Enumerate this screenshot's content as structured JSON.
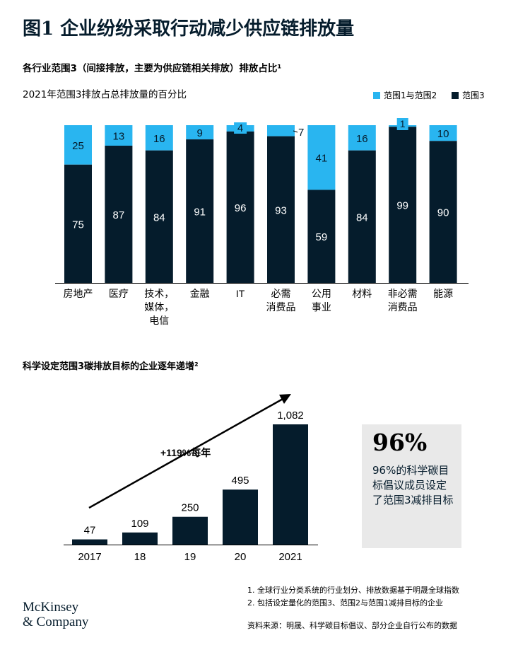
{
  "title": "图1 企业纷纷采取行动减少供应链排放量",
  "colors": {
    "dark_navy": "#051c2c",
    "light_blue": "#29b5f0",
    "callout_bg": "#e9e9e9"
  },
  "chart_data": [
    {
      "type": "bar",
      "stacked": true,
      "title": "各行业范围3（间接排放，主要为供应链相关排放）排放占比¹",
      "subtitle": "2021年范围3排放占总排放量的百分比",
      "categories": [
        "房地产",
        "医疗",
        "技术，\n媒体，\n电信",
        "金融",
        "IT",
        "必需\n消费品",
        "公用\n事业",
        "材料",
        "非必需\n消费品",
        "能源"
      ],
      "series": [
        {
          "name": "范围3",
          "color": "#051c2c",
          "values": [
            75,
            87,
            84,
            91,
            96,
            93,
            59,
            84,
            99,
            90
          ]
        },
        {
          "name": "范围1与范围2",
          "color": "#29b5f0",
          "values": [
            25,
            13,
            16,
            9,
            4,
            7,
            41,
            16,
            1,
            10
          ]
        }
      ],
      "legend": [
        "范围1与范围2",
        "范围3"
      ],
      "ylim": [
        0,
        100
      ]
    },
    {
      "type": "bar",
      "title": "科学设定范围3碳排放目标的企业逐年递增²",
      "categories": [
        "2017",
        "18",
        "19",
        "20",
        "2021"
      ],
      "values": [
        47,
        109,
        250,
        495,
        1082
      ],
      "value_labels": [
        "47",
        "109",
        "250",
        "495",
        "1,082"
      ],
      "annotation": "+119%每年",
      "color": "#051c2c"
    }
  ],
  "callout": {
    "big_number": "96%",
    "text": "96%的科学碳目标倡议成员设定了范围3减排目标"
  },
  "footnotes": [
    "1. 全球行业分类系统的行业划分、排放数据基于明晟全球指数",
    "2. 包括设定量化的范围3、范围2与范围1减排目标的企业"
  ],
  "source": "资料来源：明晟、科学碳目标倡议、部分企业自行公布的数据",
  "logo": {
    "line1": "McKinsey",
    "line2": "& Company"
  }
}
